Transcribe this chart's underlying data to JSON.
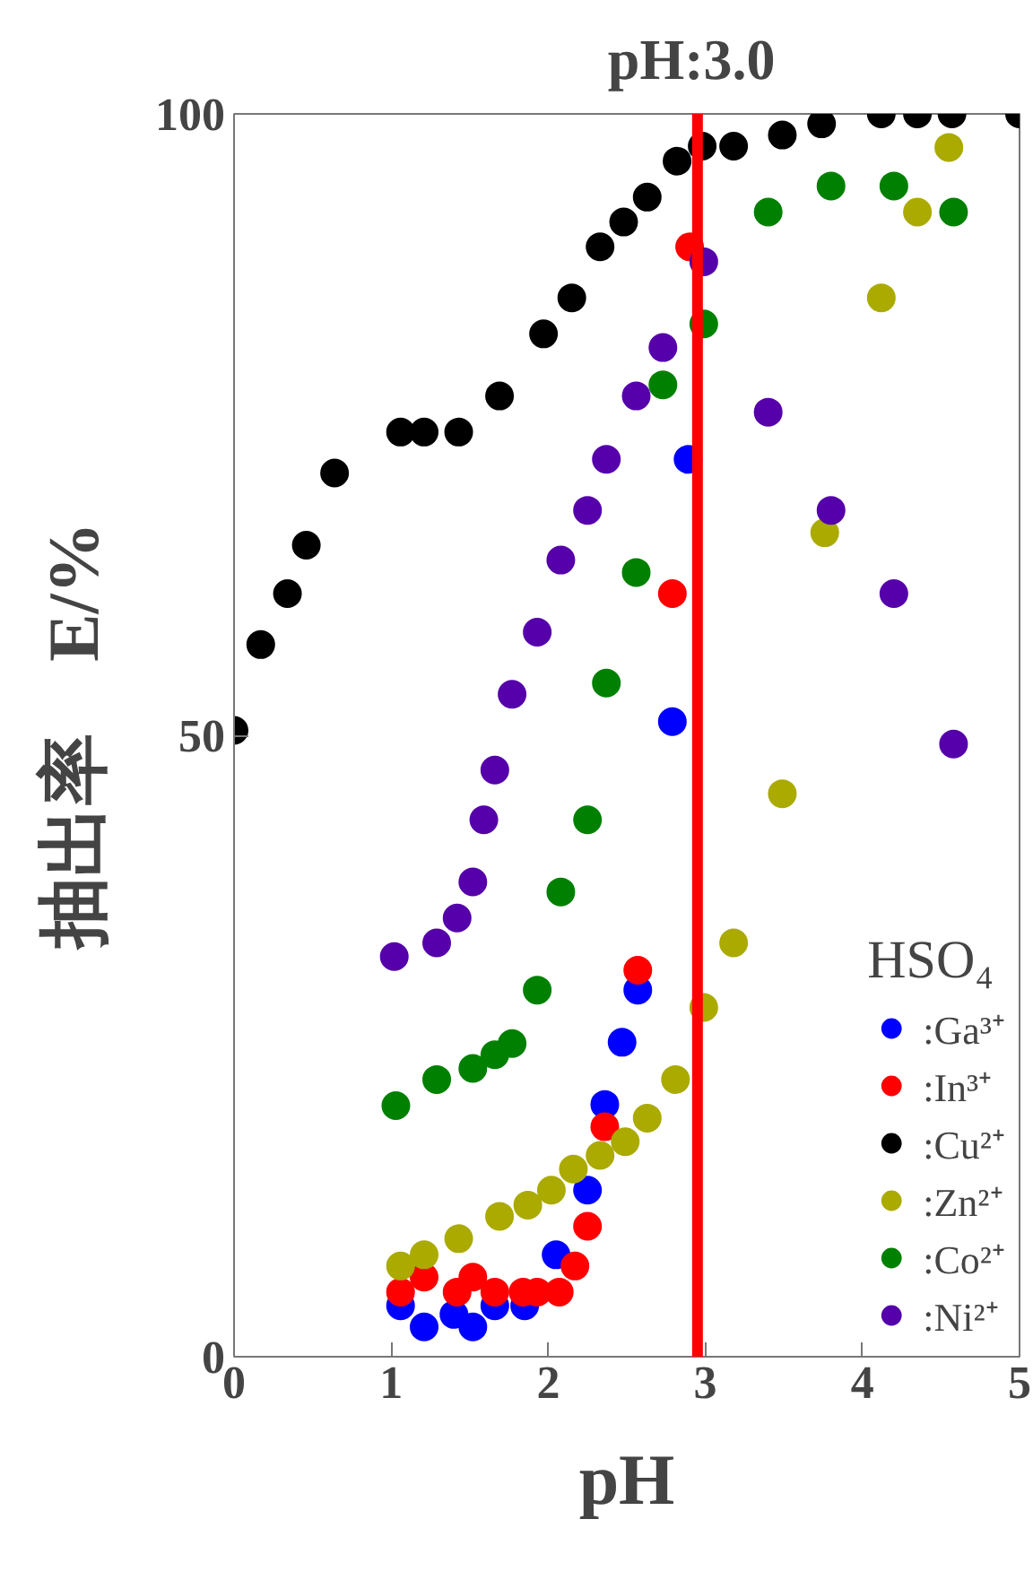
{
  "chart_data": {
    "type": "scatter",
    "xlabel": "pH",
    "ylabel": "抽出率　E/%",
    "legend_title": "HSO₄",
    "xlim": [
      0,
      5
    ],
    "ylim": [
      0,
      100
    ],
    "xticks": [
      0,
      1,
      2,
      3,
      4,
      5
    ],
    "yticks": [
      0,
      50,
      100
    ],
    "grid": false,
    "legend": "bottom right",
    "marker": "circle",
    "ref_lines": [
      {
        "axis": "x",
        "value": 2.95,
        "label": "pH:3.0",
        "color": "#ff0000"
      }
    ],
    "series": [
      {
        "name": ":Ga³⁺",
        "color": "#0000ff",
        "x": [
          1.06,
          1.21,
          1.4,
          1.52,
          1.66,
          1.85,
          2.05,
          2.25,
          2.36,
          2.47,
          2.57,
          2.79,
          2.89
        ],
        "values": [
          4.1,
          2.4,
          3.4,
          2.4,
          4.1,
          4.1,
          8.2,
          13.4,
          20.3,
          25.3,
          29.5,
          51.1,
          72.2
        ]
      },
      {
        "name": ":In³⁺",
        "color": "#ff0000",
        "x": [
          1.06,
          1.21,
          1.42,
          1.52,
          1.66,
          1.84,
          1.93,
          2.07,
          2.17,
          2.25,
          2.36,
          2.57,
          2.79,
          2.9
        ],
        "values": [
          5.2,
          6.4,
          5.2,
          6.4,
          5.2,
          5.2,
          5.2,
          5.2,
          7.3,
          10.5,
          18.5,
          31.1,
          61.4,
          89.3
        ]
      },
      {
        "name": ":Cu²⁺",
        "color": "#000000",
        "x": [
          0,
          0.17,
          0.34,
          0.46,
          0.64,
          1.06,
          1.21,
          1.43,
          1.69,
          1.97,
          2.15,
          2.33,
          2.48,
          2.63,
          2.82,
          2.98,
          3.18,
          3.49,
          3.74,
          4.12,
          4.35,
          4.57,
          5
        ],
        "values": [
          50.4,
          57.3,
          61.4,
          65.3,
          71.1,
          74.4,
          74.4,
          74.4,
          77.3,
          82.3,
          85.2,
          89.3,
          91.3,
          93.3,
          96.2,
          97.4,
          97.4,
          98.3,
          99.2,
          100,
          100,
          100,
          100
        ]
      },
      {
        "name": ":Zn²⁺",
        "color": "#aaaa00",
        "x": [
          1.06,
          1.21,
          1.43,
          1.69,
          1.87,
          2.02,
          2.16,
          2.33,
          2.49,
          2.63,
          2.81,
          2.99,
          3.18,
          3.49,
          3.76,
          4.12,
          4.35,
          4.55
        ],
        "values": [
          7.3,
          8.2,
          9.5,
          11.3,
          12.2,
          13.4,
          15.1,
          16.2,
          17.3,
          19.2,
          22.3,
          28.1,
          33.3,
          45.3,
          66.3,
          85.2,
          92.1,
          97.3
        ]
      },
      {
        "name": ":Co²⁺",
        "color": "#008000",
        "x": [
          1.03,
          1.29,
          1.52,
          1.66,
          1.77,
          1.93,
          2.08,
          2.25,
          2.37,
          2.56,
          2.73,
          2.99,
          3.4,
          3.8,
          4.2,
          4.58
        ],
        "values": [
          20.2,
          22.3,
          23.2,
          24.3,
          25.2,
          29.5,
          37.4,
          43.2,
          54.2,
          63.1,
          78.2,
          83.1,
          92.1,
          94.2,
          94.2,
          92.1
        ]
      },
      {
        "name": ":Ni²⁺",
        "color": "#5500aa",
        "x": [
          1.02,
          1.29,
          1.42,
          1.52,
          1.59,
          1.66,
          1.77,
          1.93,
          2.08,
          2.25,
          2.37,
          2.56,
          2.73,
          2.99,
          3.4,
          3.8,
          4.2,
          4.58
        ],
        "values": [
          32.2,
          33.3,
          35.3,
          38.2,
          43.2,
          47.2,
          53.3,
          58.3,
          64.1,
          68.1,
          72.2,
          77.3,
          81.2,
          88.1,
          76.0,
          68.1,
          61.4,
          49.3
        ]
      }
    ]
  }
}
